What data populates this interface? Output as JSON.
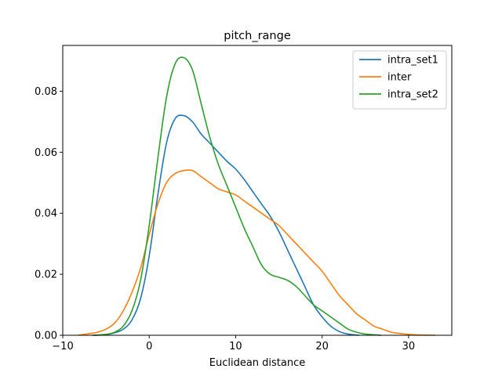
{
  "chart_data": {
    "type": "line",
    "title": "pitch_range",
    "xlabel": "Euclidean distance",
    "ylabel": "",
    "xlim": [
      -10,
      35
    ],
    "ylim": [
      0,
      0.095
    ],
    "xticks": [
      -10,
      0,
      10,
      20,
      30
    ],
    "xtick_labels": [
      "−10",
      "0",
      "10",
      "20",
      "30"
    ],
    "yticks": [
      0,
      0.02,
      0.04,
      0.06,
      0.08
    ],
    "ytick_labels": [
      "0.00",
      "0.02",
      "0.04",
      "0.06",
      "0.08"
    ],
    "grid": false,
    "legend_position": "top-right",
    "series": [
      {
        "name": "intra_set1",
        "color": "#1f77b4",
        "x": [
          -6.4,
          -5,
          -4,
          -3,
          -2,
          -1,
          0,
          1,
          2,
          3,
          4,
          5,
          6,
          7,
          8,
          9,
          10,
          11,
          12,
          13,
          14,
          15,
          16,
          17,
          18,
          19,
          20,
          21,
          22,
          23,
          24.3
        ],
        "y": [
          0.0,
          0.0002,
          0.0008,
          0.002,
          0.005,
          0.012,
          0.026,
          0.046,
          0.063,
          0.071,
          0.072,
          0.07,
          0.066,
          0.063,
          0.06,
          0.057,
          0.0545,
          0.051,
          0.047,
          0.043,
          0.039,
          0.034,
          0.028,
          0.022,
          0.016,
          0.01,
          0.006,
          0.003,
          0.0012,
          0.0004,
          0.0
        ]
      },
      {
        "name": "inter",
        "color": "#ff7f0e",
        "x": [
          -8.2,
          -7,
          -6,
          -5,
          -4,
          -3,
          -2,
          -1,
          0,
          1,
          2,
          3,
          4,
          5,
          6,
          7,
          8,
          9,
          10,
          11,
          12,
          13,
          14,
          15,
          16,
          17,
          18,
          19,
          20,
          21,
          22,
          23,
          24,
          25,
          26,
          27,
          28,
          29,
          30,
          31,
          32,
          33.1
        ],
        "y": [
          0.0,
          0.0005,
          0.001,
          0.002,
          0.004,
          0.008,
          0.014,
          0.022,
          0.033,
          0.043,
          0.05,
          0.053,
          0.054,
          0.054,
          0.052,
          0.05,
          0.048,
          0.047,
          0.046,
          0.044,
          0.042,
          0.04,
          0.038,
          0.036,
          0.033,
          0.03,
          0.027,
          0.024,
          0.021,
          0.017,
          0.013,
          0.01,
          0.007,
          0.005,
          0.003,
          0.002,
          0.001,
          0.0006,
          0.0003,
          0.0001,
          5e-05,
          0.0
        ]
      },
      {
        "name": "intra_set2",
        "color": "#2ca02c",
        "x": [
          -6.6,
          -5,
          -4,
          -3,
          -2,
          -1,
          0,
          1,
          2,
          3,
          4,
          5,
          6,
          7,
          8,
          9,
          10,
          11,
          12,
          13,
          14,
          15,
          16,
          17,
          18,
          19,
          20,
          21,
          22,
          23,
          24,
          25,
          26.8
        ],
        "y": [
          0.0,
          0.0003,
          0.001,
          0.003,
          0.008,
          0.018,
          0.036,
          0.058,
          0.078,
          0.089,
          0.091,
          0.087,
          0.076,
          0.065,
          0.056,
          0.049,
          0.042,
          0.035,
          0.029,
          0.023,
          0.02,
          0.019,
          0.018,
          0.016,
          0.013,
          0.01,
          0.008,
          0.006,
          0.004,
          0.002,
          0.001,
          0.0004,
          0.0
        ]
      }
    ]
  }
}
